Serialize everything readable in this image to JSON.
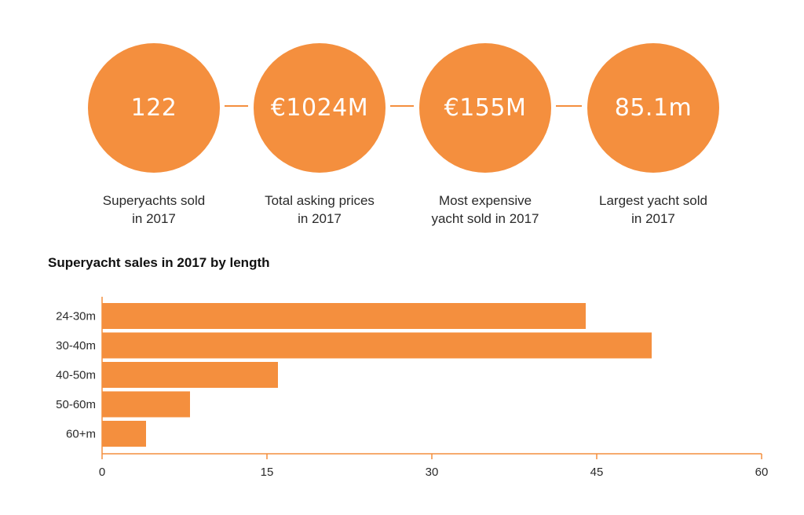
{
  "colors": {
    "accent": "#f48f3e",
    "axis": "#f48f3e",
    "text": "#2a2a2a"
  },
  "stats": [
    {
      "value": "122",
      "caption": [
        "Superyachts sold",
        "in 2017"
      ]
    },
    {
      "value": "€1024M",
      "caption": [
        "Total asking prices",
        "in 2017"
      ]
    },
    {
      "value": "€155M",
      "caption": [
        "Most expensive",
        "yacht sold in 2017"
      ]
    },
    {
      "value": "85.1m",
      "caption": [
        "Largest yacht sold",
        "in 2017"
      ]
    }
  ],
  "chart_data": {
    "type": "bar",
    "orientation": "horizontal",
    "title": "Superyacht sales in 2017 by length",
    "categories": [
      "24-30m",
      "30-40m",
      "40-50m",
      "50-60m",
      "60+m"
    ],
    "values": [
      44,
      50,
      16,
      8,
      4
    ],
    "xlim": [
      0,
      60
    ],
    "xticks": [
      0,
      15,
      30,
      45,
      60
    ],
    "xlabel": "",
    "ylabel": "",
    "grid": false,
    "legend": "none"
  }
}
